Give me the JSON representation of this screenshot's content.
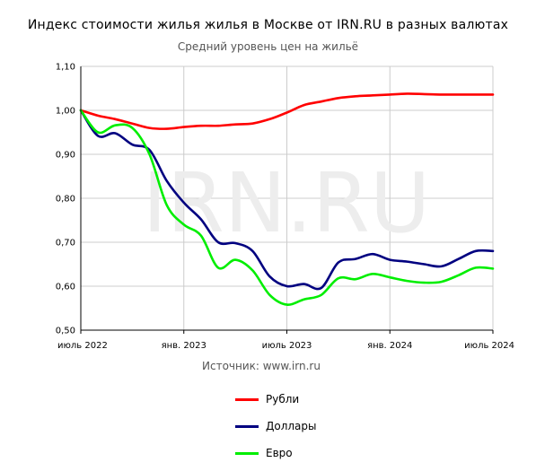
{
  "chart_data": {
    "type": "line",
    "title": "Индекс стоимости жилья жилья в Москве от IRN.RU в разных валютах",
    "subtitle": "Средний уровень цен на жильё",
    "watermark": "IRN.RU",
    "source": "Источник: www.irn.ru",
    "ylim": [
      0.5,
      1.1
    ],
    "yticks": [
      "0,50",
      "0,60",
      "0,70",
      "0,80",
      "0,90",
      "1,00",
      "1,10"
    ],
    "xticks": [
      "июль 2022",
      "янв. 2023",
      "июль 2023",
      "янв. 2024",
      "июль 2024"
    ],
    "grid": true,
    "legend_position": "bottom",
    "x": [
      "2022-07",
      "2022-08",
      "2022-09",
      "2022-10",
      "2022-11",
      "2022-12",
      "2023-01",
      "2023-02",
      "2023-03",
      "2023-04",
      "2023-05",
      "2023-06",
      "2023-07",
      "2023-08",
      "2023-09",
      "2023-10",
      "2023-11",
      "2023-12",
      "2024-01",
      "2024-02",
      "2024-03",
      "2024-04",
      "2024-05",
      "2024-06",
      "2024-07"
    ],
    "series": [
      {
        "name": "Рубли",
        "color": "#ff0000",
        "values": [
          1.0,
          0.988,
          0.98,
          0.97,
          0.96,
          0.958,
          0.962,
          0.965,
          0.965,
          0.968,
          0.97,
          0.98,
          0.995,
          1.012,
          1.02,
          1.028,
          1.032,
          1.034,
          1.036,
          1.038,
          1.037,
          1.036,
          1.036,
          1.036,
          1.036
        ]
      },
      {
        "name": "Доллары",
        "color": "#000080",
        "values": [
          1.0,
          0.942,
          0.948,
          0.922,
          0.91,
          0.84,
          0.79,
          0.752,
          0.7,
          0.698,
          0.68,
          0.622,
          0.6,
          0.605,
          0.596,
          0.654,
          0.662,
          0.673,
          0.66,
          0.656,
          0.65,
          0.645,
          0.662,
          0.68,
          0.68
        ]
      },
      {
        "name": "Евро",
        "color": "#00ee00",
        "values": [
          1.0,
          0.95,
          0.966,
          0.96,
          0.9,
          0.785,
          0.74,
          0.715,
          0.642,
          0.66,
          0.636,
          0.58,
          0.558,
          0.57,
          0.58,
          0.618,
          0.616,
          0.628,
          0.62,
          0.612,
          0.608,
          0.61,
          0.625,
          0.642,
          0.64
        ]
      }
    ]
  }
}
